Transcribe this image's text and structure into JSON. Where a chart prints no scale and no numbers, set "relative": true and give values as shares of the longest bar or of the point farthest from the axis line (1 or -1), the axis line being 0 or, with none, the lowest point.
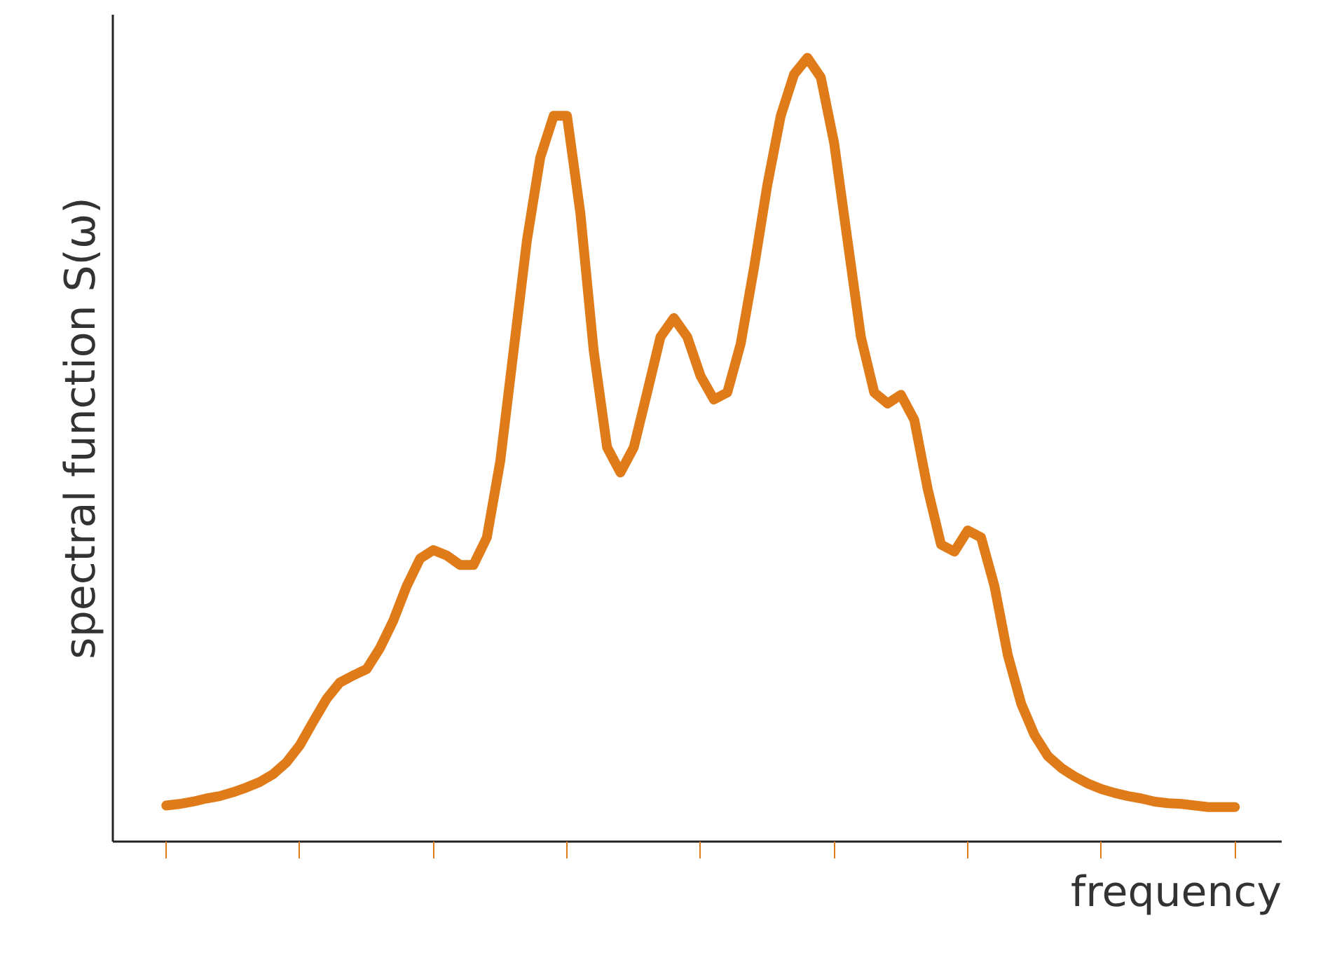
{
  "chart_data": {
    "type": "line",
    "relative": true,
    "xlabel": "frequency",
    "ylabel": "spectral function S(ω)",
    "marker": "none",
    "line_style": "solid",
    "grid": false,
    "categories": [
      null,
      null,
      null,
      null,
      null,
      null,
      null,
      null,
      null,
      null,
      null,
      null,
      null,
      null,
      null,
      null,
      null,
      null,
      null,
      null,
      null,
      null,
      null,
      null,
      null,
      null,
      null,
      null,
      null,
      null,
      null,
      null,
      null,
      null,
      null,
      null,
      null,
      null,
      null,
      null,
      null,
      null,
      null,
      null,
      null,
      null,
      null,
      null,
      null,
      null,
      null,
      null,
      null,
      null,
      null,
      null,
      null,
      null,
      null,
      null,
      null,
      null,
      null,
      null,
      null,
      null,
      null,
      null,
      null,
      null,
      null,
      null,
      null,
      null,
      null,
      null,
      null,
      null,
      null,
      null,
      null
    ],
    "series": [
      {
        "color": "#e07b1a",
        "values": [
          0.046,
          0.048,
          0.051,
          0.055,
          0.058,
          0.063,
          0.069,
          0.076,
          0.086,
          0.101,
          0.123,
          0.153,
          0.182,
          0.203,
          0.212,
          0.22,
          0.247,
          0.282,
          0.326,
          0.361,
          0.372,
          0.365,
          0.353,
          0.353,
          0.388,
          0.485,
          0.626,
          0.767,
          0.873,
          0.926,
          0.926,
          0.802,
          0.626,
          0.503,
          0.471,
          0.503,
          0.573,
          0.644,
          0.668,
          0.644,
          0.594,
          0.564,
          0.573,
          0.635,
          0.732,
          0.838,
          0.926,
          0.979,
          1.0,
          0.975,
          0.891,
          0.767,
          0.644,
          0.573,
          0.559,
          0.57,
          0.538,
          0.45,
          0.379,
          0.37,
          0.397,
          0.388,
          0.326,
          0.238,
          0.176,
          0.136,
          0.109,
          0.094,
          0.083,
          0.074,
          0.067,
          0.062,
          0.058,
          0.055,
          0.051,
          0.049,
          0.048,
          0.046,
          0.044,
          0.044,
          0.044
        ]
      }
    ]
  }
}
